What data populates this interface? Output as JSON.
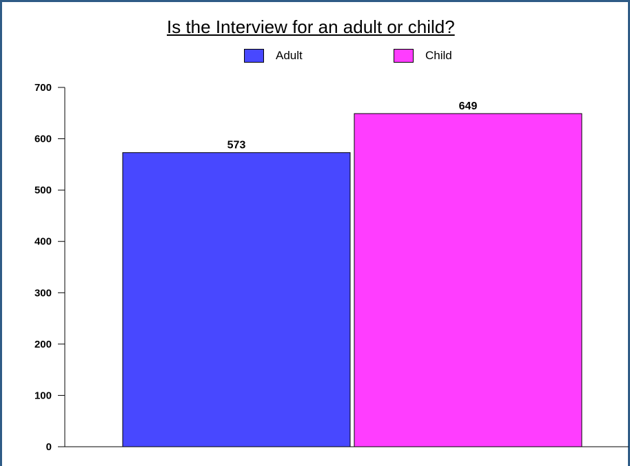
{
  "chart_data": {
    "type": "bar",
    "title": "Is the Interview for an adult or child?",
    "categories": [
      "Adult",
      "Child"
    ],
    "values": [
      573,
      649
    ],
    "colors": [
      "#4848ff",
      "#ff3dff"
    ],
    "ylim": [
      0,
      700
    ],
    "yticks": [
      "0",
      "100",
      "200",
      "300",
      "400",
      "500",
      "600",
      "700"
    ],
    "value_labels": [
      "573",
      "649"
    ],
    "legend": [
      {
        "label": "Adult",
        "color": "#4848ff"
      },
      {
        "label": "Child",
        "color": "#ff3dff"
      }
    ],
    "legend_position": "top-center",
    "grid": false,
    "xlabel": "",
    "ylabel": ""
  }
}
